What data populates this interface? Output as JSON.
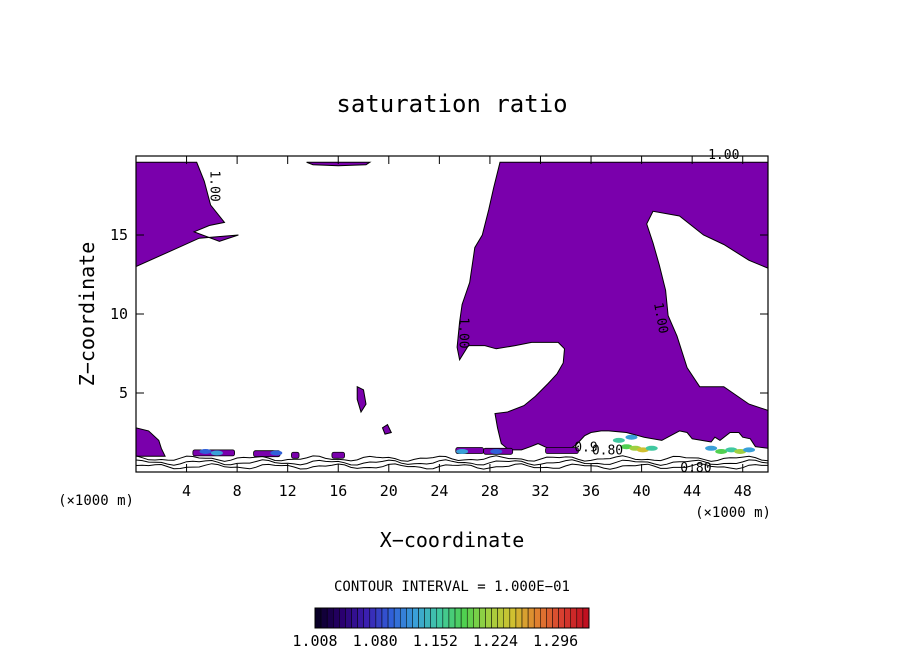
{
  "chart_data": {
    "type": "heatmap",
    "title": "saturation ratio",
    "xlabel": "X−coordinate",
    "ylabel": "Z−coordinate",
    "x_unit_left": "(×1000 m)",
    "x_unit_right": "(×1000 m)",
    "xlim": [
      0,
      50
    ],
    "ylim": [
      0,
      20
    ],
    "xticks": [
      4,
      8,
      12,
      16,
      20,
      24,
      28,
      32,
      36,
      40,
      44,
      48
    ],
    "yticks": [
      5,
      10,
      15
    ],
    "contour_interval_text": "CONTOUR INTERVAL = 1.000E−01",
    "contour_labels": [
      {
        "text": "1.00",
        "x": 46.5,
        "y": 19.8,
        "rotate": 0
      },
      {
        "text": "1.00",
        "x": 5.9,
        "y": 18.1,
        "rotate": 90
      },
      {
        "text": "1.00",
        "x": 25.6,
        "y": 8.8,
        "rotate": 90
      },
      {
        "text": "1.00",
        "x": 41.2,
        "y": 9.7,
        "rotate": 80
      },
      {
        "text": "0.80",
        "x": 37.3,
        "y": 1.1,
        "rotate": 0
      },
      {
        "text": "0.9",
        "x": 35.6,
        "y": 1.3,
        "rotate": 0
      },
      {
        "text": "0.80",
        "x": 44.3,
        "y": 0.0,
        "rotate": 0
      }
    ],
    "colorbar": {
      "min": 1.008,
      "max": 1.336,
      "tick_labels": [
        "1.008",
        "1.080",
        "1.152",
        "1.224",
        "1.296"
      ],
      "colors": [
        "#0a0028",
        "#2a0070",
        "#3b1fb0",
        "#3060d8",
        "#3aa0d8",
        "#40c8a0",
        "#50d050",
        "#a0d040",
        "#d0c030",
        "#e08030",
        "#d84030",
        "#c01020"
      ]
    },
    "fill_color": "#7a00ac",
    "supersaturated_regions": [
      [
        [
          0,
          13
        ],
        [
          2.5,
          13.9
        ],
        [
          5,
          14.8
        ],
        [
          8.1,
          15.0
        ],
        [
          6.6,
          14.6
        ],
        [
          4.6,
          15.2
        ],
        [
          5.8,
          15.6
        ],
        [
          7,
          15.8
        ],
        [
          5.9,
          16.9
        ],
        [
          5.4,
          18.4
        ],
        [
          4.8,
          19.6
        ],
        [
          0,
          19.6
        ]
      ],
      [
        [
          13.5,
          19.6
        ],
        [
          18.5,
          19.6
        ],
        [
          18.2,
          19.45
        ],
        [
          16,
          19.38
        ],
        [
          14,
          19.45
        ]
      ],
      [
        [
          28.8,
          19.6
        ],
        [
          50,
          19.6
        ],
        [
          50,
          12.9
        ],
        [
          48.5,
          13.4
        ],
        [
          46.5,
          14.4
        ],
        [
          44.9,
          15.0
        ],
        [
          43,
          16.2
        ],
        [
          40.9,
          16.5
        ],
        [
          40.4,
          15.7
        ],
        [
          40.9,
          14.5
        ],
        [
          41.4,
          13.1
        ],
        [
          41.9,
          11.5
        ],
        [
          42.1,
          9.9
        ],
        [
          42.8,
          8.6
        ],
        [
          43.6,
          6.6
        ],
        [
          44.6,
          5.4
        ],
        [
          46.5,
          5.4
        ],
        [
          48.5,
          4.3
        ],
        [
          50,
          3.9
        ],
        [
          50,
          1.5
        ],
        [
          49,
          1.6
        ],
        [
          48.6,
          2.1
        ],
        [
          48,
          2.2
        ],
        [
          47.7,
          2.5
        ],
        [
          47,
          2.5
        ],
        [
          46.2,
          2.0
        ],
        [
          45.8,
          2.2
        ],
        [
          45.5,
          1.9
        ],
        [
          44,
          2.1
        ],
        [
          43.6,
          2.5
        ],
        [
          43,
          2.6
        ],
        [
          41.6,
          2.0
        ],
        [
          40.2,
          2.2
        ],
        [
          38.8,
          2.5
        ],
        [
          37.4,
          2.6
        ],
        [
          36.8,
          2.6
        ],
        [
          36,
          2.5
        ],
        [
          35.5,
          2.3
        ],
        [
          34.8,
          1.7
        ],
        [
          34,
          1.3
        ],
        [
          32.6,
          1.5
        ],
        [
          31.8,
          1.8
        ],
        [
          31.2,
          1.6
        ],
        [
          30.5,
          1.4
        ],
        [
          29.5,
          1.4
        ],
        [
          28.9,
          1.8
        ],
        [
          28.6,
          2.8
        ],
        [
          28.4,
          3.7
        ],
        [
          29.4,
          3.8
        ],
        [
          30.7,
          4.2
        ],
        [
          31.6,
          4.8
        ],
        [
          32.6,
          5.6
        ],
        [
          33.3,
          6.2
        ],
        [
          33.8,
          6.9
        ],
        [
          33.9,
          7.8
        ],
        [
          33.4,
          8.2
        ],
        [
          31.3,
          8.2
        ],
        [
          30,
          8.0
        ],
        [
          28.5,
          7.8
        ],
        [
          27.6,
          8.0
        ],
        [
          26.3,
          8.0
        ],
        [
          25.6,
          7.1
        ],
        [
          25.4,
          7.9
        ],
        [
          25.6,
          9.5
        ],
        [
          25.8,
          10.6
        ],
        [
          26.4,
          12.0
        ],
        [
          26.8,
          14.2
        ],
        [
          27.4,
          15.0
        ],
        [
          27.9,
          16.6
        ],
        [
          28.3,
          18.0
        ]
      ],
      [
        [
          17.5,
          5.4
        ],
        [
          18,
          5.2
        ],
        [
          18.2,
          4.3
        ],
        [
          17.8,
          3.8
        ],
        [
          17.5,
          4.6
        ]
      ],
      [
        [
          19.5,
          2.8
        ],
        [
          19.9,
          3.0
        ],
        [
          20.2,
          2.5
        ],
        [
          19.7,
          2.4
        ]
      ],
      [
        [
          0,
          2.8
        ],
        [
          1,
          2.6
        ],
        [
          1.8,
          2
        ],
        [
          2,
          1.5
        ],
        [
          2.3,
          1.0
        ],
        [
          0,
          1.0
        ]
      ]
    ],
    "contour_lines_z": [
      0.35,
      0.6,
      0.85
    ]
  }
}
